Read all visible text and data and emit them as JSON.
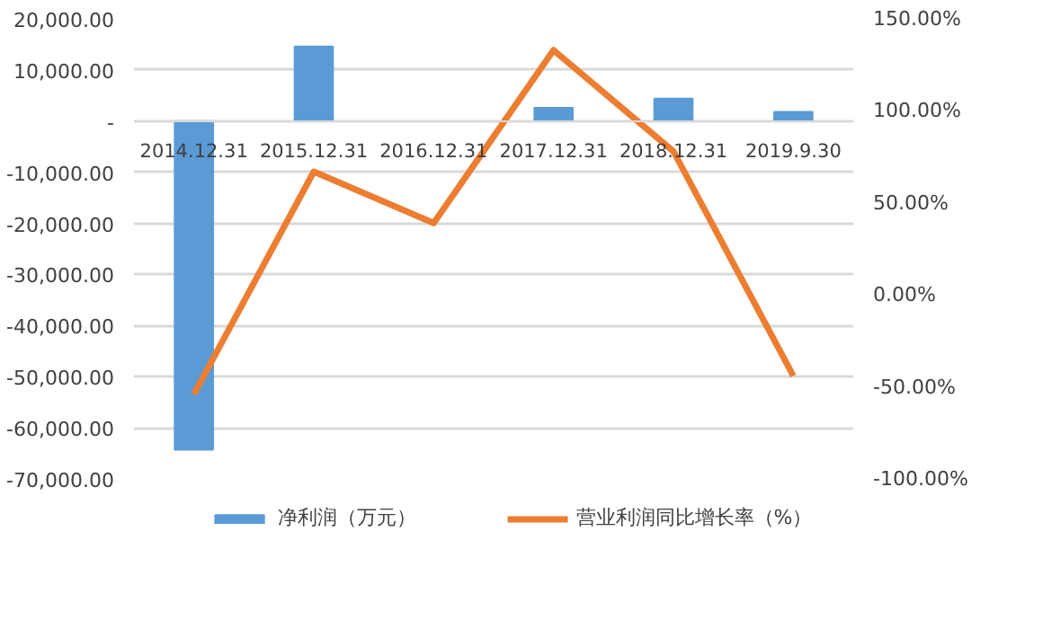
{
  "chart_data": {
    "type": "bar",
    "categories": [
      "2014.12.31",
      "2015.12.31",
      "2016.12.31",
      "2017.12.31",
      "2018.12.31",
      "2019.9.30"
    ],
    "series": [
      {
        "name": "净利润（万元）",
        "color": "#5b9bd5",
        "values": [
          -64300,
          14600,
          null,
          2600,
          4400,
          1800
        ]
      },
      {
        "name": "营业利润同比增长率（%）",
        "type": "line",
        "axis": "y2",
        "color": "#ed7d31",
        "values": [
          -54,
          67,
          39,
          133,
          78,
          -44
        ]
      }
    ],
    "ylim": [
      -70000,
      20000
    ],
    "yticks": [
      {
        "value": 20000,
        "label": "20,000.00"
      },
      {
        "value": 10000,
        "label": "10,000.00"
      },
      {
        "value": 0,
        "label": "-"
      },
      {
        "value": -10000,
        "label": "-10,000.00"
      },
      {
        "value": -20000,
        "label": "-20,000.00"
      },
      {
        "value": -30000,
        "label": "-30,000.00"
      },
      {
        "value": -40000,
        "label": "-40,000.00"
      },
      {
        "value": -50000,
        "label": "-50,000.00"
      },
      {
        "value": -60000,
        "label": "-60,000.00"
      },
      {
        "value": -70000,
        "label": "-70,000.00"
      }
    ],
    "y2lim": [
      -100,
      150
    ],
    "y2ticks": [
      {
        "value": 150,
        "label": "150.00%"
      },
      {
        "value": 100,
        "label": "100.00%"
      },
      {
        "value": 50,
        "label": "50.00%"
      },
      {
        "value": 0,
        "label": "0.00%"
      },
      {
        "value": -50,
        "label": "-50.00%"
      },
      {
        "value": -100,
        "label": "-100.00%"
      }
    ],
    "grid": "y",
    "legend": "bottom",
    "line_style": "solid"
  }
}
